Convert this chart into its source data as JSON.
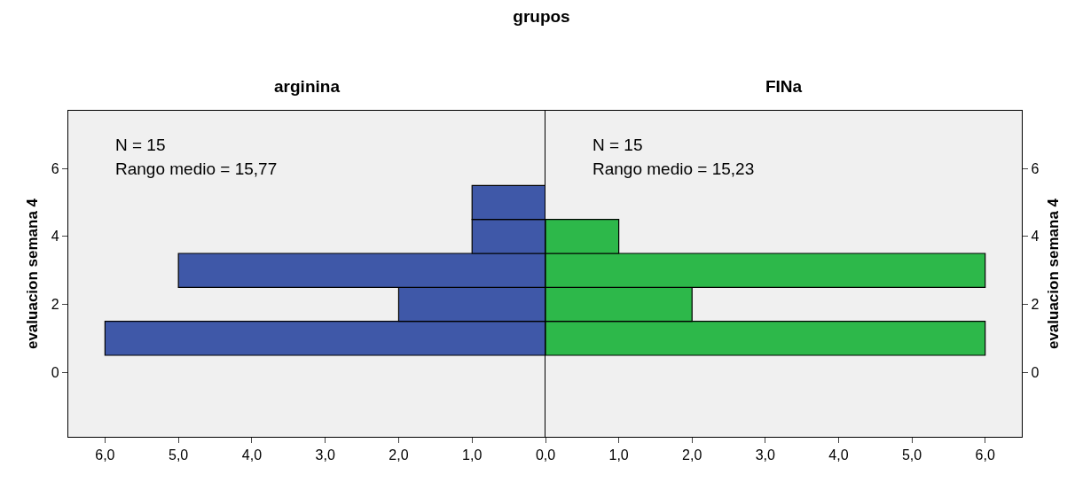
{
  "chart_data": [
    {
      "type": "histogram",
      "title": "grupos",
      "subtitle": "arginina",
      "ylabel": "evaluacion semana 4",
      "orientation": "horizontal",
      "color": "#3f58a8",
      "bins": [
        0.5,
        1.5,
        2.5,
        3.5,
        4.5,
        5.5
      ],
      "values": [
        6,
        2,
        5,
        1,
        1
      ],
      "xlim": [
        6.5,
        0
      ],
      "xticks": [
        {
          "value": 6,
          "label": "6,0"
        },
        {
          "value": 5,
          "label": "5,0"
        },
        {
          "value": 4,
          "label": "4,0"
        },
        {
          "value": 3,
          "label": "3,0"
        },
        {
          "value": 2,
          "label": "2,0"
        },
        {
          "value": 1,
          "label": "1,0"
        },
        {
          "value": 0,
          "label": "0,0"
        }
      ],
      "ylim": [
        -1.9,
        7.7
      ],
      "yticks": [
        0,
        2,
        4,
        6
      ],
      "annotations": [
        "N = 15",
        "Rango medio = 15,77"
      ]
    },
    {
      "type": "histogram",
      "subtitle": "FINa",
      "ylabel": "evaluacion semana 4",
      "orientation": "horizontal",
      "color": "#2db84a",
      "bins": [
        0.5,
        1.5,
        2.5,
        3.5,
        4.5
      ],
      "values": [
        6,
        2,
        6,
        1
      ],
      "xlim": [
        0,
        6.5
      ],
      "xticks": [
        {
          "value": 1,
          "label": "1,0"
        },
        {
          "value": 2,
          "label": "2,0"
        },
        {
          "value": 3,
          "label": "3,0"
        },
        {
          "value": 4,
          "label": "4,0"
        },
        {
          "value": 5,
          "label": "5,0"
        },
        {
          "value": 6,
          "label": "6,0"
        }
      ],
      "ylim": [
        -1.9,
        7.7
      ],
      "yticks": [
        0,
        2,
        4,
        6
      ],
      "annotations": [
        "N = 15",
        "Rango medio = 15,23"
      ]
    }
  ]
}
